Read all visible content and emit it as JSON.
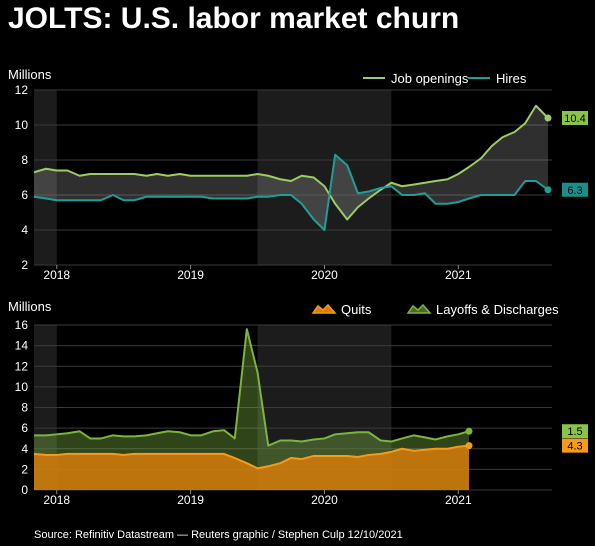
{
  "title": "JOLTS: U.S. labor market churn",
  "source": "Source: Refinitiv Datastream — Reuters graphic / Stephen Culp 12/10/2021",
  "colors": {
    "background": "#000000",
    "shade": "#1c1c1c",
    "grid": "#3a3a3a",
    "openings": "#9ccc65",
    "hires": "#1f9e99",
    "quits": "#f59a1b",
    "layoffs": "#7cb342"
  },
  "chart_data": [
    {
      "type": "line",
      "ylabel": "Millions",
      "ylim": [
        2,
        12
      ],
      "yticks": [
        2,
        4,
        6,
        8,
        10,
        12
      ],
      "xlim": [
        2017.83,
        2021.7
      ],
      "xticks": [
        {
          "label": "2018",
          "x": 2018.0
        },
        {
          "label": "2019",
          "x": 2019.0
        },
        {
          "label": "2020",
          "x": 2020.0
        },
        {
          "label": "2021",
          "x": 2021.0
        }
      ],
      "shaded_ranges": [
        [
          2017.83,
          2018.0
        ],
        [
          2019.5,
          2020.5
        ]
      ],
      "legend": "top-right",
      "series": [
        {
          "name": "Job openings",
          "color_key": "openings",
          "end_label": "10.4",
          "values": [
            [
              2017.83,
              7.3
            ],
            [
              2017.92,
              7.5
            ],
            [
              2018.0,
              7.4
            ],
            [
              2018.08,
              7.4
            ],
            [
              2018.17,
              7.1
            ],
            [
              2018.25,
              7.2
            ],
            [
              2018.33,
              7.2
            ],
            [
              2018.42,
              7.2
            ],
            [
              2018.5,
              7.2
            ],
            [
              2018.58,
              7.2
            ],
            [
              2018.67,
              7.1
            ],
            [
              2018.75,
              7.2
            ],
            [
              2018.83,
              7.1
            ],
            [
              2018.92,
              7.2
            ],
            [
              2019.0,
              7.1
            ],
            [
              2019.08,
              7.1
            ],
            [
              2019.17,
              7.1
            ],
            [
              2019.25,
              7.1
            ],
            [
              2019.33,
              7.1
            ],
            [
              2019.42,
              7.1
            ],
            [
              2019.5,
              7.2
            ],
            [
              2019.58,
              7.1
            ],
            [
              2019.67,
              6.9
            ],
            [
              2019.75,
              6.8
            ],
            [
              2019.83,
              7.1
            ],
            [
              2019.92,
              7.0
            ],
            [
              2020.0,
              6.5
            ],
            [
              2020.08,
              5.5
            ],
            [
              2020.17,
              4.6
            ],
            [
              2020.25,
              5.3
            ],
            [
              2020.33,
              5.8
            ],
            [
              2020.42,
              6.3
            ],
            [
              2020.5,
              6.7
            ],
            [
              2020.58,
              6.5
            ],
            [
              2020.67,
              6.6
            ],
            [
              2020.75,
              6.7
            ],
            [
              2020.83,
              6.8
            ],
            [
              2020.92,
              6.9
            ],
            [
              2021.0,
              7.2
            ],
            [
              2021.08,
              7.6
            ],
            [
              2021.17,
              8.1
            ],
            [
              2021.25,
              8.8
            ],
            [
              2021.33,
              9.3
            ],
            [
              2021.42,
              9.6
            ],
            [
              2021.5,
              10.1
            ],
            [
              2021.58,
              11.1
            ],
            [
              2021.67,
              10.4
            ]
          ]
        },
        {
          "name": "Hires",
          "color_key": "hires",
          "end_label": "6.3",
          "values": [
            [
              2017.83,
              5.9
            ],
            [
              2017.92,
              5.8
            ],
            [
              2018.0,
              5.7
            ],
            [
              2018.08,
              5.7
            ],
            [
              2018.17,
              5.7
            ],
            [
              2018.25,
              5.7
            ],
            [
              2018.33,
              5.7
            ],
            [
              2018.42,
              6.0
            ],
            [
              2018.5,
              5.7
            ],
            [
              2018.58,
              5.7
            ],
            [
              2018.67,
              5.9
            ],
            [
              2018.75,
              5.9
            ],
            [
              2018.83,
              5.9
            ],
            [
              2018.92,
              5.9
            ],
            [
              2019.0,
              5.9
            ],
            [
              2019.08,
              5.9
            ],
            [
              2019.17,
              5.8
            ],
            [
              2019.25,
              5.8
            ],
            [
              2019.33,
              5.8
            ],
            [
              2019.42,
              5.8
            ],
            [
              2019.5,
              5.9
            ],
            [
              2019.58,
              5.9
            ],
            [
              2019.67,
              6.0
            ],
            [
              2019.75,
              6.0
            ],
            [
              2019.83,
              5.5
            ],
            [
              2019.92,
              4.6
            ],
            [
              2020.0,
              4.0
            ],
            [
              2020.08,
              8.3
            ],
            [
              2020.17,
              7.7
            ],
            [
              2020.25,
              6.1
            ],
            [
              2020.33,
              6.2
            ],
            [
              2020.42,
              6.4
            ],
            [
              2020.5,
              6.5
            ],
            [
              2020.58,
              6.0
            ],
            [
              2020.67,
              6.0
            ],
            [
              2020.75,
              6.1
            ],
            [
              2020.83,
              5.5
            ],
            [
              2020.92,
              5.5
            ],
            [
              2021.0,
              5.6
            ],
            [
              2021.08,
              5.8
            ],
            [
              2021.17,
              6.0
            ],
            [
              2021.25,
              6.0
            ],
            [
              2021.33,
              6.0
            ],
            [
              2021.42,
              6.0
            ],
            [
              2021.5,
              6.8
            ],
            [
              2021.58,
              6.8
            ],
            [
              2021.67,
              6.3
            ]
          ]
        }
      ]
    },
    {
      "type": "area",
      "ylabel": "Millions",
      "ylim": [
        0,
        16
      ],
      "yticks": [
        0,
        2,
        4,
        6,
        8,
        10,
        12,
        14,
        16
      ],
      "xlim": [
        2017.83,
        2021.7
      ],
      "xticks": [
        {
          "label": "2018",
          "x": 2018.0
        },
        {
          "label": "2019",
          "x": 2019.0
        },
        {
          "label": "2020",
          "x": 2020.0
        },
        {
          "label": "2021",
          "x": 2021.0
        }
      ],
      "shaded_ranges": [
        [
          2017.83,
          2018.0
        ],
        [
          2019.5,
          2020.5
        ]
      ],
      "legend": "top-right",
      "series": [
        {
          "name": "Layoffs & Discharges",
          "color_key": "layoffs",
          "end_label": "1.5",
          "values": [
            [
              2017.83,
              5.3
            ],
            [
              2017.92,
              5.3
            ],
            [
              2018.0,
              5.4
            ],
            [
              2018.08,
              5.5
            ],
            [
              2018.17,
              5.7
            ],
            [
              2018.25,
              5.0
            ],
            [
              2018.33,
              5.0
            ],
            [
              2018.42,
              5.3
            ],
            [
              2018.5,
              5.2
            ],
            [
              2018.58,
              5.2
            ],
            [
              2018.67,
              5.3
            ],
            [
              2018.75,
              5.5
            ],
            [
              2018.83,
              5.7
            ],
            [
              2018.92,
              5.6
            ],
            [
              2019.0,
              5.3
            ],
            [
              2019.08,
              5.3
            ],
            [
              2019.17,
              5.7
            ],
            [
              2019.25,
              5.8
            ],
            [
              2019.33,
              5.0
            ],
            [
              2019.42,
              15.6
            ],
            [
              2019.5,
              11.4
            ],
            [
              2019.58,
              4.3
            ],
            [
              2019.67,
              4.8
            ],
            [
              2019.75,
              4.8
            ],
            [
              2019.83,
              4.7
            ],
            [
              2019.92,
              4.9
            ],
            [
              2020.0,
              5.0
            ],
            [
              2020.08,
              5.4
            ],
            [
              2020.17,
              5.5
            ],
            [
              2020.25,
              5.6
            ],
            [
              2020.33,
              5.6
            ],
            [
              2020.42,
              4.8
            ],
            [
              2020.5,
              4.7
            ],
            [
              2020.58,
              5.0
            ],
            [
              2020.67,
              5.3
            ],
            [
              2020.75,
              5.1
            ],
            [
              2020.83,
              4.9
            ],
            [
              2020.92,
              5.2
            ],
            [
              2021.0,
              5.4
            ],
            [
              2021.08,
              5.7
            ]
          ]
        },
        {
          "name": "Quits",
          "color_key": "quits",
          "end_label": "4.3",
          "values": [
            [
              2017.83,
              3.5
            ],
            [
              2017.92,
              3.4
            ],
            [
              2018.0,
              3.4
            ],
            [
              2018.08,
              3.5
            ],
            [
              2018.17,
              3.5
            ],
            [
              2018.25,
              3.5
            ],
            [
              2018.33,
              3.5
            ],
            [
              2018.42,
              3.5
            ],
            [
              2018.5,
              3.4
            ],
            [
              2018.58,
              3.5
            ],
            [
              2018.67,
              3.5
            ],
            [
              2018.75,
              3.5
            ],
            [
              2018.83,
              3.5
            ],
            [
              2018.92,
              3.5
            ],
            [
              2019.0,
              3.5
            ],
            [
              2019.08,
              3.5
            ],
            [
              2019.17,
              3.5
            ],
            [
              2019.25,
              3.5
            ],
            [
              2019.33,
              3.1
            ],
            [
              2019.42,
              2.6
            ],
            [
              2019.5,
              2.1
            ],
            [
              2019.58,
              2.3
            ],
            [
              2019.67,
              2.6
            ],
            [
              2019.75,
              3.1
            ],
            [
              2019.83,
              3.0
            ],
            [
              2019.92,
              3.3
            ],
            [
              2020.0,
              3.3
            ],
            [
              2020.08,
              3.3
            ],
            [
              2020.17,
              3.3
            ],
            [
              2020.25,
              3.2
            ],
            [
              2020.33,
              3.4
            ],
            [
              2020.42,
              3.5
            ],
            [
              2020.5,
              3.7
            ],
            [
              2020.58,
              4.0
            ],
            [
              2020.67,
              3.8
            ],
            [
              2020.75,
              3.9
            ],
            [
              2020.83,
              4.0
            ],
            [
              2020.92,
              4.0
            ],
            [
              2021.0,
              4.2
            ],
            [
              2021.08,
              4.3
            ]
          ]
        }
      ]
    }
  ]
}
